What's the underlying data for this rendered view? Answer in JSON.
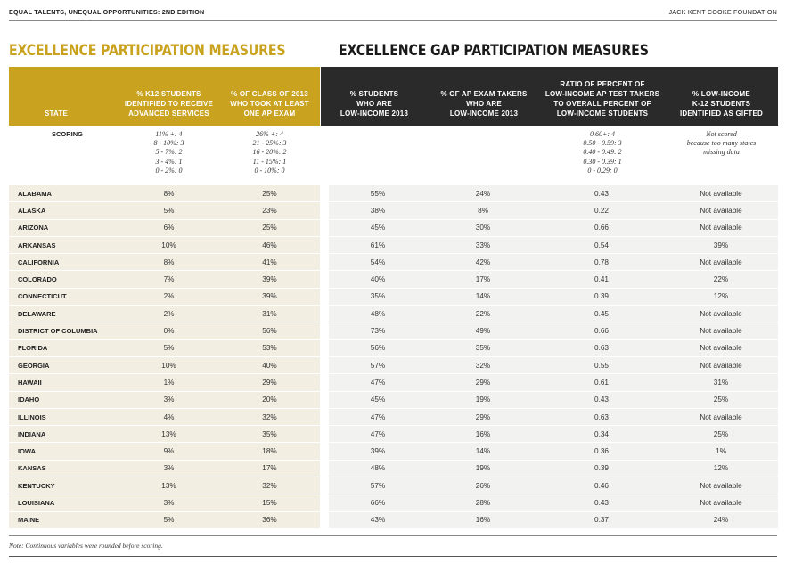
{
  "running_head": {
    "left": "EQUAL TALENTS, UNEQUAL OPPORTUNITIES: 2ND EDITION",
    "right": "JACK KENT COOKE FOUNDATION"
  },
  "sections": {
    "excellence": "EXCELLENCE PARTICIPATION MEASURES",
    "gap": "EXCELLENCE GAP PARTICIPATION MEASURES"
  },
  "headers": {
    "state": "STATE",
    "col1": "% K12 STUDENTS\nIDENTIFIED TO RECEIVE\nADVANCED SERVICES",
    "col2": "% OF CLASS OF 2013\nWHO TOOK AT LEAST\nONE AP EXAM",
    "col3": "% STUDENTS\nWHO ARE\nLOW-INCOME 2013",
    "col4": "% OF AP EXAM TAKERS\nWHO ARE\nLOW-INCOME 2013",
    "col5": "RATIO OF PERCENT OF\nLOW-INCOME AP TEST TAKERS\nTO OVERALL PERCENT OF\nLOW-INCOME STUDENTS",
    "col6": "% LOW-INCOME\nK-12 STUDENTS\nIDENTIFIED AS GIFTED"
  },
  "scoring": {
    "label": "SCORING",
    "col1": "11% +: 4\n8 - 10%: 3\n5 - 7%: 2\n3 - 4%: 1\n0 - 2%: 0",
    "col2": "26% +: 4\n21 - 25%: 3\n16 - 20%: 2\n11 - 15%: 1\n0 - 10%: 0",
    "col5": "0.60+: 4\n0.50 - 0.59: 3\n0.40 - 0.49: 2\n0.30 - 0.39: 1\n0 - 0.29: 0",
    "col6": "Not scored\nbecause too many states\nmissing data"
  },
  "rows": [
    {
      "state": "ALABAMA",
      "c1": "8%",
      "c2": "25%",
      "c3": "55%",
      "c4": "24%",
      "c5": "0.43",
      "c6": "Not available"
    },
    {
      "state": "ALASKA",
      "c1": "5%",
      "c2": "23%",
      "c3": "38%",
      "c4": "8%",
      "c5": "0.22",
      "c6": "Not available"
    },
    {
      "state": "ARIZONA",
      "c1": "6%",
      "c2": "25%",
      "c3": "45%",
      "c4": "30%",
      "c5": "0.66",
      "c6": "Not available"
    },
    {
      "state": "ARKANSAS",
      "c1": "10%",
      "c2": "46%",
      "c3": "61%",
      "c4": "33%",
      "c5": "0.54",
      "c6": "39%"
    },
    {
      "state": "CALIFORNIA",
      "c1": "8%",
      "c2": "41%",
      "c3": "54%",
      "c4": "42%",
      "c5": "0.78",
      "c6": "Not available"
    },
    {
      "state": "COLORADO",
      "c1": "7%",
      "c2": "39%",
      "c3": "40%",
      "c4": "17%",
      "c5": "0.41",
      "c6": "22%"
    },
    {
      "state": "CONNECTICUT",
      "c1": "2%",
      "c2": "39%",
      "c3": "35%",
      "c4": "14%",
      "c5": "0.39",
      "c6": "12%"
    },
    {
      "state": "DELAWARE",
      "c1": "2%",
      "c2": "31%",
      "c3": "48%",
      "c4": "22%",
      "c5": "0.45",
      "c6": "Not available"
    },
    {
      "state": "DISTRICT OF COLUMBIA",
      "c1": "0%",
      "c2": "56%",
      "c3": "73%",
      "c4": "49%",
      "c5": "0.66",
      "c6": "Not available"
    },
    {
      "state": "FLORIDA",
      "c1": "5%",
      "c2": "53%",
      "c3": "56%",
      "c4": "35%",
      "c5": "0.63",
      "c6": "Not available"
    },
    {
      "state": "GEORGIA",
      "c1": "10%",
      "c2": "40%",
      "c3": "57%",
      "c4": "32%",
      "c5": "0.55",
      "c6": "Not available"
    },
    {
      "state": "HAWAII",
      "c1": "1%",
      "c2": "29%",
      "c3": "47%",
      "c4": "29%",
      "c5": "0.61",
      "c6": "31%"
    },
    {
      "state": "IDAHO",
      "c1": "3%",
      "c2": "20%",
      "c3": "45%",
      "c4": "19%",
      "c5": "0.43",
      "c6": "25%"
    },
    {
      "state": "ILLINOIS",
      "c1": "4%",
      "c2": "32%",
      "c3": "47%",
      "c4": "29%",
      "c5": "0.63",
      "c6": "Not available"
    },
    {
      "state": "INDIANA",
      "c1": "13%",
      "c2": "35%",
      "c3": "47%",
      "c4": "16%",
      "c5": "0.34",
      "c6": "25%"
    },
    {
      "state": "IOWA",
      "c1": "9%",
      "c2": "18%",
      "c3": "39%",
      "c4": "14%",
      "c5": "0.36",
      "c6": "1%"
    },
    {
      "state": "KANSAS",
      "c1": "3%",
      "c2": "17%",
      "c3": "48%",
      "c4": "19%",
      "c5": "0.39",
      "c6": "12%"
    },
    {
      "state": "KENTUCKY",
      "c1": "13%",
      "c2": "32%",
      "c3": "57%",
      "c4": "26%",
      "c5": "0.46",
      "c6": "Not available"
    },
    {
      "state": "LOUISIANA",
      "c1": "3%",
      "c2": "15%",
      "c3": "66%",
      "c4": "28%",
      "c5": "0.43",
      "c6": "Not available"
    },
    {
      "state": "MAINE",
      "c1": "5%",
      "c2": "36%",
      "c3": "43%",
      "c4": "16%",
      "c5": "0.37",
      "c6": "24%"
    }
  ],
  "footnote": "Note: Continuous variables were rounded before scoring.",
  "colors": {
    "gold": "#c9a21f",
    "dark": "#2a2a2a",
    "beige_band": "#f3eee2",
    "grey_band": "#f2f2f1"
  }
}
